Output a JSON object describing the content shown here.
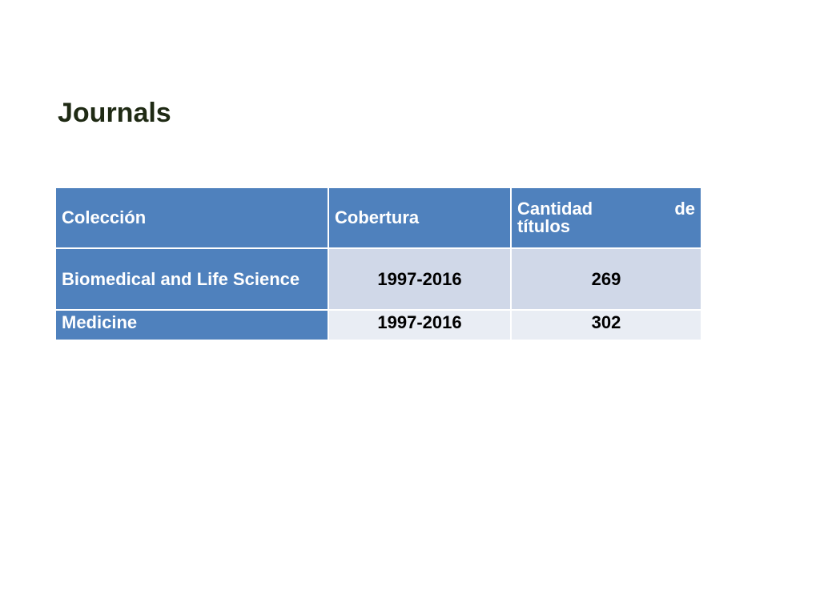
{
  "slide": {
    "title": "Journals"
  },
  "table": {
    "headers": {
      "collection": "Colección",
      "coverage": "Cobertura",
      "titles_line1_a": "Cantidad",
      "titles_line1_b": "de",
      "titles_line2": "títulos"
    },
    "rows": [
      {
        "collection": "Biomedical and Life Science",
        "coverage": "1997-2016",
        "titles": "269"
      },
      {
        "collection": "Medicine",
        "coverage": "1997-2016",
        "titles": "302"
      }
    ]
  },
  "colors": {
    "header_blue": "#4f81bd",
    "row_band_dark": "#d0d8e8",
    "row_band_light": "#e9edf4",
    "title_text": "#1f2a14"
  }
}
